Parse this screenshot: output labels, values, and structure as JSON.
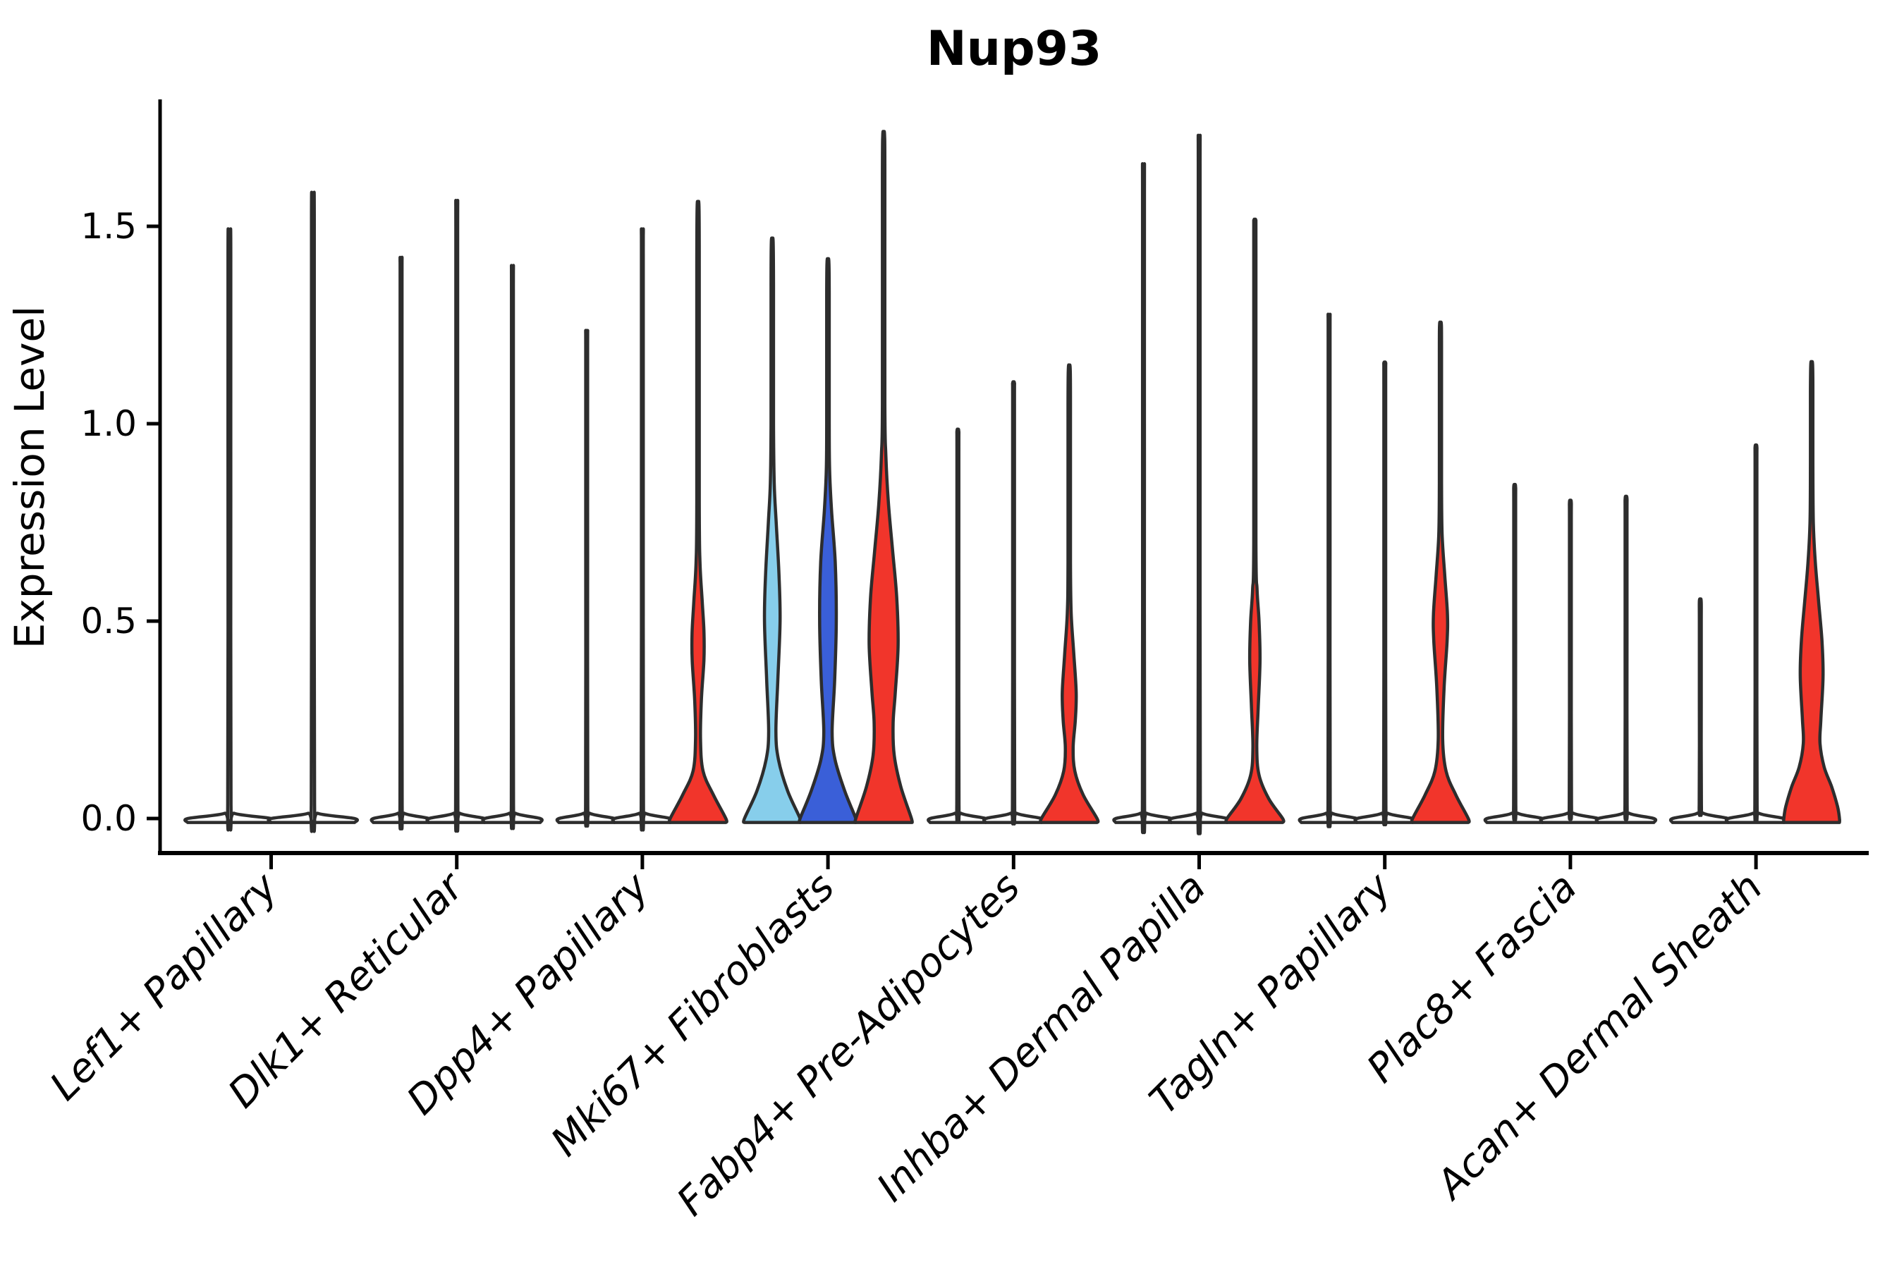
{
  "page": {
    "background": "#ffffff"
  },
  "chart_data": {
    "type": "violin",
    "title": "Nup93",
    "ylabel": "Expression Level",
    "xlabel": "",
    "grid": false,
    "legend": null,
    "ylim": [
      -0.05,
      1.82
    ],
    "yticks": [
      {
        "label": "0.0",
        "value": 0.0
      },
      {
        "label": "0.5",
        "value": 0.5
      },
      {
        "label": "1.0",
        "value": 1.0
      },
      {
        "label": "1.5",
        "value": 1.5
      }
    ],
    "colors": {
      "red": "#f1352b",
      "light_blue": "#87ceeb",
      "dark_blue": "#3a5fd8",
      "white": "#ffffff",
      "outline": "#2d2d2d",
      "axis": "#000000"
    },
    "categories": [
      {
        "label": "Lef1+ Papillary",
        "violins": [
          {
            "color": "white",
            "max": 1.48
          },
          {
            "color": "white",
            "max": 1.57
          }
        ]
      },
      {
        "label": "Dlk1+ Reticular",
        "violins": [
          {
            "color": "white",
            "max": 1.41
          },
          {
            "color": "white",
            "max": 1.55
          },
          {
            "color": "white",
            "max": 1.39
          }
        ]
      },
      {
        "label": "Dpp4+ Papillary",
        "violins": [
          {
            "color": "white",
            "max": 1.23
          },
          {
            "color": "white",
            "max": 1.48
          },
          {
            "color": "red",
            "max": 1.55,
            "profile": [
              [
                0,
                1
              ],
              [
                0.06,
                0.55
              ],
              [
                0.12,
                0.18
              ],
              [
                0.2,
                0.09
              ],
              [
                0.3,
                0.12
              ],
              [
                0.4,
                0.21
              ],
              [
                0.47,
                0.215
              ],
              [
                0.55,
                0.15
              ],
              [
                0.65,
                0.07
              ],
              [
                0.8,
                0.045
              ],
              [
                1.4,
                0.045
              ],
              [
                1.55,
                0.02
              ]
            ]
          }
        ]
      },
      {
        "label": "Mki67+ Fibroblasts",
        "violins": [
          {
            "color": "light_blue",
            "max": 1.46,
            "profile": [
              [
                0,
                1
              ],
              [
                0.07,
                0.55
              ],
              [
                0.15,
                0.22
              ],
              [
                0.22,
                0.13
              ],
              [
                0.35,
                0.2
              ],
              [
                0.5,
                0.28
              ],
              [
                0.62,
                0.24
              ],
              [
                0.75,
                0.14
              ],
              [
                0.85,
                0.07
              ],
              [
                1.0,
                0.045
              ],
              [
                1.35,
                0.045
              ],
              [
                1.46,
                0.02
              ]
            ]
          },
          {
            "color": "dark_blue",
            "max": 1.41,
            "profile": [
              [
                0,
                1
              ],
              [
                0.07,
                0.6
              ],
              [
                0.15,
                0.25
              ],
              [
                0.22,
                0.15
              ],
              [
                0.35,
                0.24
              ],
              [
                0.5,
                0.3
              ],
              [
                0.65,
                0.26
              ],
              [
                0.78,
                0.13
              ],
              [
                0.88,
                0.06
              ],
              [
                1.0,
                0.045
              ],
              [
                1.33,
                0.045
              ],
              [
                1.41,
                0.02
              ]
            ]
          },
          {
            "color": "red",
            "max": 1.73,
            "profile": [
              [
                0,
                1
              ],
              [
                0.08,
                0.62
              ],
              [
                0.16,
                0.38
              ],
              [
                0.24,
                0.34
              ],
              [
                0.32,
                0.42
              ],
              [
                0.44,
                0.52
              ],
              [
                0.56,
                0.47
              ],
              [
                0.68,
                0.32
              ],
              [
                0.8,
                0.17
              ],
              [
                0.92,
                0.08
              ],
              [
                1.05,
                0.045
              ],
              [
                1.62,
                0.045
              ],
              [
                1.73,
                0.02
              ]
            ]
          }
        ]
      },
      {
        "label": "Fabp4+ Pre-Adipocytes",
        "violins": [
          {
            "color": "white",
            "max": 0.98
          },
          {
            "color": "white",
            "max": 1.1
          },
          {
            "color": "red",
            "max": 1.14,
            "profile": [
              [
                0,
                1
              ],
              [
                0.06,
                0.5
              ],
              [
                0.12,
                0.2
              ],
              [
                0.18,
                0.14
              ],
              [
                0.25,
                0.22
              ],
              [
                0.32,
                0.25
              ],
              [
                0.42,
                0.16
              ],
              [
                0.52,
                0.07
              ],
              [
                0.65,
                0.045
              ],
              [
                1.05,
                0.045
              ],
              [
                1.14,
                0.02
              ]
            ]
          }
        ]
      },
      {
        "label": "Inhba+ Dermal Papilla",
        "violins": [
          {
            "color": "white",
            "max": 1.64
          },
          {
            "color": "white",
            "max": 1.71
          },
          {
            "color": "red",
            "max": 1.51,
            "profile": [
              [
                0,
                1
              ],
              [
                0.05,
                0.5
              ],
              [
                0.11,
                0.15
              ],
              [
                0.18,
                0.07
              ],
              [
                0.28,
                0.12
              ],
              [
                0.4,
                0.185
              ],
              [
                0.5,
                0.15
              ],
              [
                0.58,
                0.08
              ],
              [
                0.7,
                0.04
              ],
              [
                1.43,
                0.04
              ],
              [
                1.51,
                0.02
              ]
            ]
          }
        ]
      },
      {
        "label": "Tagln+ Papillary",
        "violins": [
          {
            "color": "white",
            "max": 1.27
          },
          {
            "color": "white",
            "max": 1.15
          },
          {
            "color": "red",
            "max": 1.25,
            "profile": [
              [
                0,
                1
              ],
              [
                0.06,
                0.55
              ],
              [
                0.12,
                0.2
              ],
              [
                0.2,
                0.08
              ],
              [
                0.33,
                0.13
              ],
              [
                0.45,
                0.24
              ],
              [
                0.52,
                0.25
              ],
              [
                0.62,
                0.15
              ],
              [
                0.72,
                0.06
              ],
              [
                0.85,
                0.04
              ],
              [
                1.18,
                0.04
              ],
              [
                1.25,
                0.02
              ]
            ]
          }
        ]
      },
      {
        "label": "Plac8+ Fascia",
        "violins": [
          {
            "color": "white",
            "max": 0.84
          },
          {
            "color": "white",
            "max": 0.8
          },
          {
            "color": "white",
            "max": 0.81
          }
        ]
      },
      {
        "label": "Acan+ Dermal Sheath",
        "violins": [
          {
            "color": "white",
            "max": 0.55
          },
          {
            "color": "white",
            "max": 0.94
          },
          {
            "color": "red",
            "max": 1.15,
            "profile": [
              [
                0,
                1
              ],
              [
                0.03,
                0.93
              ],
              [
                0.08,
                0.72
              ],
              [
                0.13,
                0.45
              ],
              [
                0.19,
                0.3
              ],
              [
                0.25,
                0.33
              ],
              [
                0.36,
                0.41
              ],
              [
                0.45,
                0.37
              ],
              [
                0.55,
                0.25
              ],
              [
                0.65,
                0.13
              ],
              [
                0.75,
                0.06
              ],
              [
                0.9,
                0.045
              ],
              [
                1.08,
                0.045
              ],
              [
                1.15,
                0.02
              ]
            ]
          }
        ]
      }
    ]
  }
}
